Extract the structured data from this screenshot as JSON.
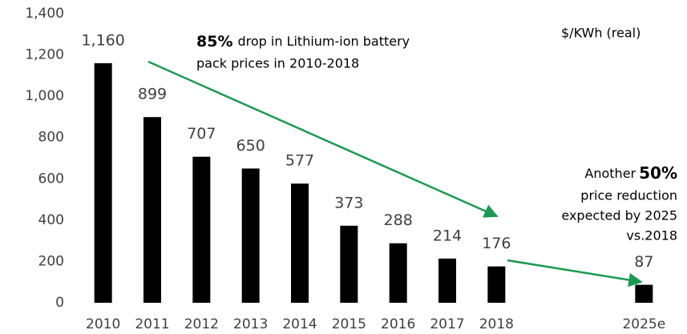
{
  "chart_data": {
    "type": "bar",
    "categories": [
      "2010",
      "2011",
      "2012",
      "2013",
      "2014",
      "2015",
      "2016",
      "2017",
      "2018",
      null,
      null,
      "2025e"
    ],
    "values": [
      1160,
      899,
      707,
      650,
      577,
      373,
      288,
      214,
      176,
      null,
      null,
      87
    ],
    "value_labels": [
      "1,160",
      "899",
      "707",
      "650",
      "577",
      "373",
      "288",
      "214",
      "176",
      null,
      null,
      "87"
    ],
    "color": "#000000",
    "ylim": [
      0,
      1400
    ],
    "yticks": [
      0,
      200,
      400,
      600,
      800,
      {
        "value": 1000,
        "label": "1,000"
      },
      {
        "value": 1200,
        "label": "1,200"
      },
      {
        "value": 1400,
        "label": "1,400"
      }
    ],
    "unit_label": "$/KWh (real)",
    "annotations": [
      {
        "bold": "85%",
        "lines": [
          "drop in Lithium-ion battery",
          "pack prices in 2010-2018"
        ]
      },
      {
        "prefix": "Another",
        "bold": "50%",
        "lines": [
          "price reduction",
          "expected by 2025",
          "vs.2018"
        ]
      }
    ]
  }
}
